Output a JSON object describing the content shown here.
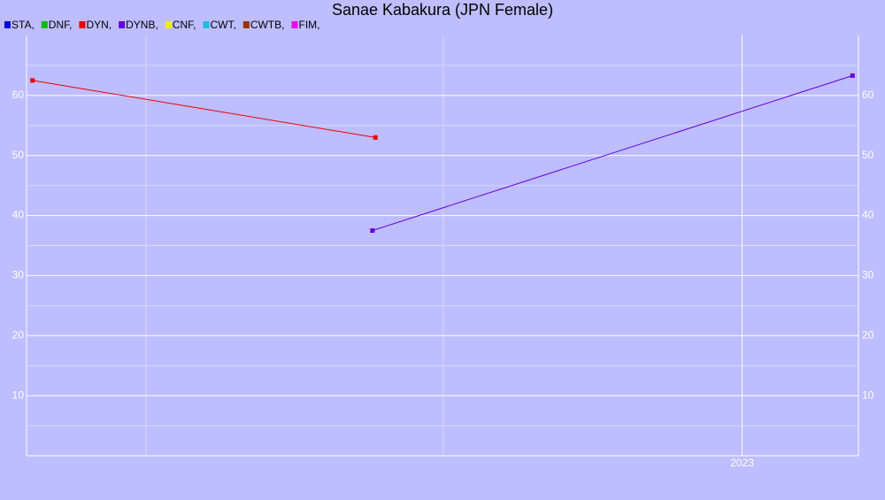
{
  "chart_data": {
    "type": "line",
    "title": "Sanae Kabakura (JPN Female)",
    "series": [
      {
        "name": "STA,",
        "color": "#0000dd",
        "x": [],
        "values": []
      },
      {
        "name": "DNF,",
        "color": "#00bb00",
        "x": [],
        "values": []
      },
      {
        "name": "DYN,",
        "color": "#ee0000",
        "x": [
          2020.62,
          2021.77
        ],
        "values": [
          62.5,
          53
        ]
      },
      {
        "name": "DYNB,",
        "color": "#6600dd",
        "x": [
          2021.76,
          2023.37
        ],
        "values": [
          37.5,
          63.3
        ]
      },
      {
        "name": "CNF,",
        "color": "#eeee00",
        "x": [],
        "values": []
      },
      {
        "name": "CWT,",
        "color": "#22bbdd",
        "x": [],
        "values": []
      },
      {
        "name": "CWTB,",
        "color": "#993300",
        "x": [],
        "values": []
      },
      {
        "name": "FIM,",
        "color": "#ee00ee",
        "x": [],
        "values": []
      }
    ],
    "xlim": [
      2020.6,
      2023.39
    ],
    "xticks": [
      {
        "value": 2023,
        "label": "2023"
      }
    ],
    "ylim": [
      0,
      70
    ],
    "yticks": [
      10,
      20,
      30,
      40,
      50,
      60
    ],
    "grid": true
  }
}
